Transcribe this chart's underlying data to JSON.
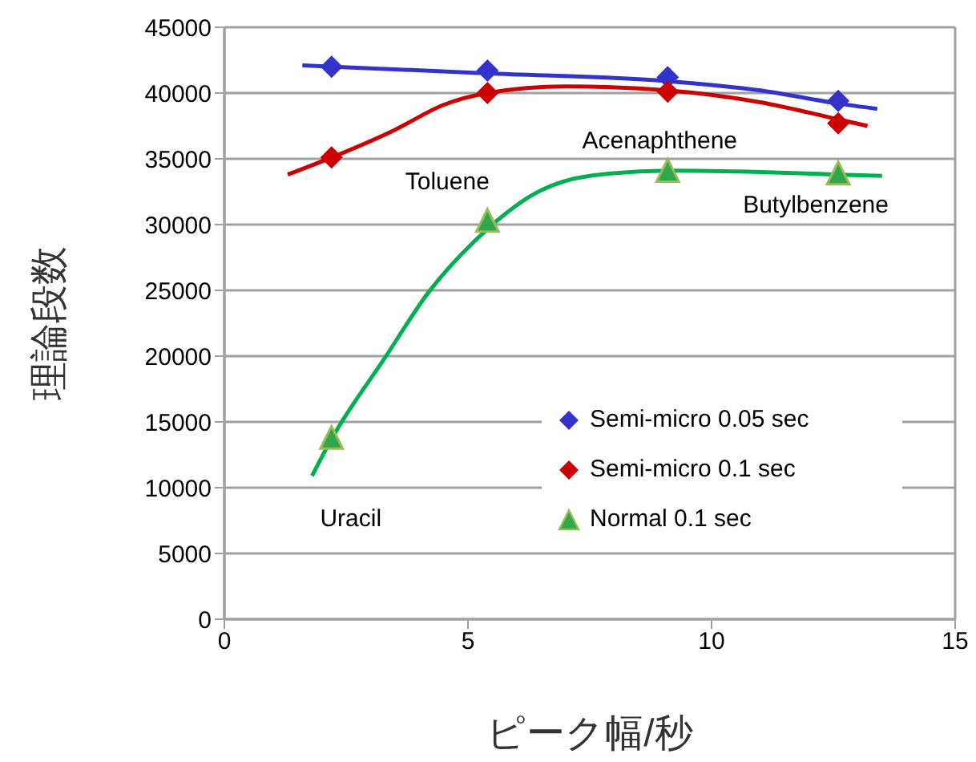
{
  "chart_data": {
    "type": "scatter",
    "xlabel": "ピーク幅/秒",
    "ylabel": "理論段数",
    "xlim": [
      0,
      15
    ],
    "xticks": [
      0,
      5,
      10,
      15
    ],
    "ylim": [
      0,
      45000
    ],
    "yticks": [
      0,
      5000,
      10000,
      15000,
      20000,
      25000,
      30000,
      35000,
      40000,
      45000
    ],
    "grid": "y",
    "legend": "bottom right",
    "series": [
      {
        "name": "Semi-micro 0.05 sec",
        "type": "scatter",
        "marker": "diamond",
        "color": "#3333cc",
        "x": [
          2.2,
          5.4,
          9.1,
          12.6
        ],
        "values": [
          42000,
          41700,
          41200,
          39400
        ]
      },
      {
        "name": "Semi-micro 0.1 sec",
        "type": "scatter",
        "marker": "diamond",
        "color": "#cc0000",
        "x": [
          2.2,
          5.4,
          9.1,
          12.6
        ],
        "values": [
          35100,
          40000,
          40100,
          37700
        ]
      },
      {
        "name": "Normal 0.1 sec",
        "type": "scatter",
        "marker": "triangle",
        "color": "#2ea84a",
        "x": [
          2.2,
          5.4,
          9.1,
          12.6
        ],
        "values": [
          13700,
          30200,
          34000,
          33800
        ]
      },
      {
        "type": "line",
        "marker": "none",
        "color": "#3333cc",
        "x": [
          1.6,
          5.4,
          9.1,
          11,
          12.6,
          13.4
        ],
        "values": [
          42100,
          41500,
          40900,
          40200,
          39200,
          38800
        ]
      },
      {
        "type": "line",
        "marker": "none",
        "color": "#cc0000",
        "x": [
          1.3,
          2.2,
          3.5,
          4.5,
          5.4,
          7,
          9.1,
          11,
          12.6,
          13.2
        ],
        "values": [
          33800,
          35100,
          37200,
          39100,
          40000,
          40500,
          40200,
          39300,
          38000,
          37500
        ]
      },
      {
        "type": "line",
        "marker": "none",
        "color": "#00b050",
        "x": [
          1.8,
          2.2,
          3.3,
          4.2,
          5.15,
          6.5,
          7.5,
          9.1,
          11,
          12.6,
          13.5
        ],
        "values": [
          10900,
          13700,
          19900,
          24900,
          28800,
          32600,
          33700,
          34100,
          34000,
          33800,
          33700
        ]
      }
    ],
    "annotations": [
      {
        "text": "Uracil",
        "x": 2.2,
        "y": 13700
      },
      {
        "text": "Toluene",
        "x": 5.4,
        "y": 30200
      },
      {
        "text": "Acenaphthene",
        "x": 9.1,
        "y": 34000
      },
      {
        "text": "Butylbenzene",
        "x": 12.6,
        "y": 33800
      }
    ]
  }
}
